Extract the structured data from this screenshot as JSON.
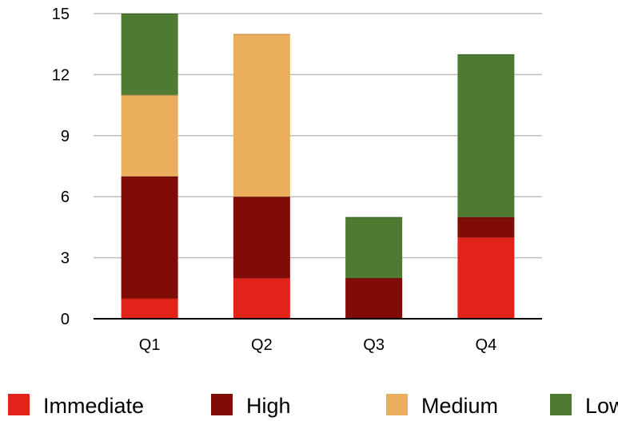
{
  "chart_data": {
    "type": "bar",
    "stacked": true,
    "categories": [
      "Q1",
      "Q2",
      "Q3",
      "Q4"
    ],
    "series": [
      {
        "name": "Immediate",
        "color": "#e2231a",
        "values": [
          1,
          2,
          0,
          4
        ]
      },
      {
        "name": "High",
        "color": "#7f0c06",
        "values": [
          6,
          4,
          2,
          1
        ]
      },
      {
        "name": "Medium",
        "color": "#ebae5c",
        "values": [
          4,
          8,
          0,
          0
        ]
      },
      {
        "name": "Low",
        "color": "#4e7a32",
        "values": [
          4,
          0,
          3,
          8
        ]
      }
    ],
    "yticks": [
      "0",
      "3",
      "6",
      "9",
      "12",
      "15"
    ],
    "ylim": [
      0,
      15
    ],
    "grid": true,
    "legend_position": "bottom"
  }
}
